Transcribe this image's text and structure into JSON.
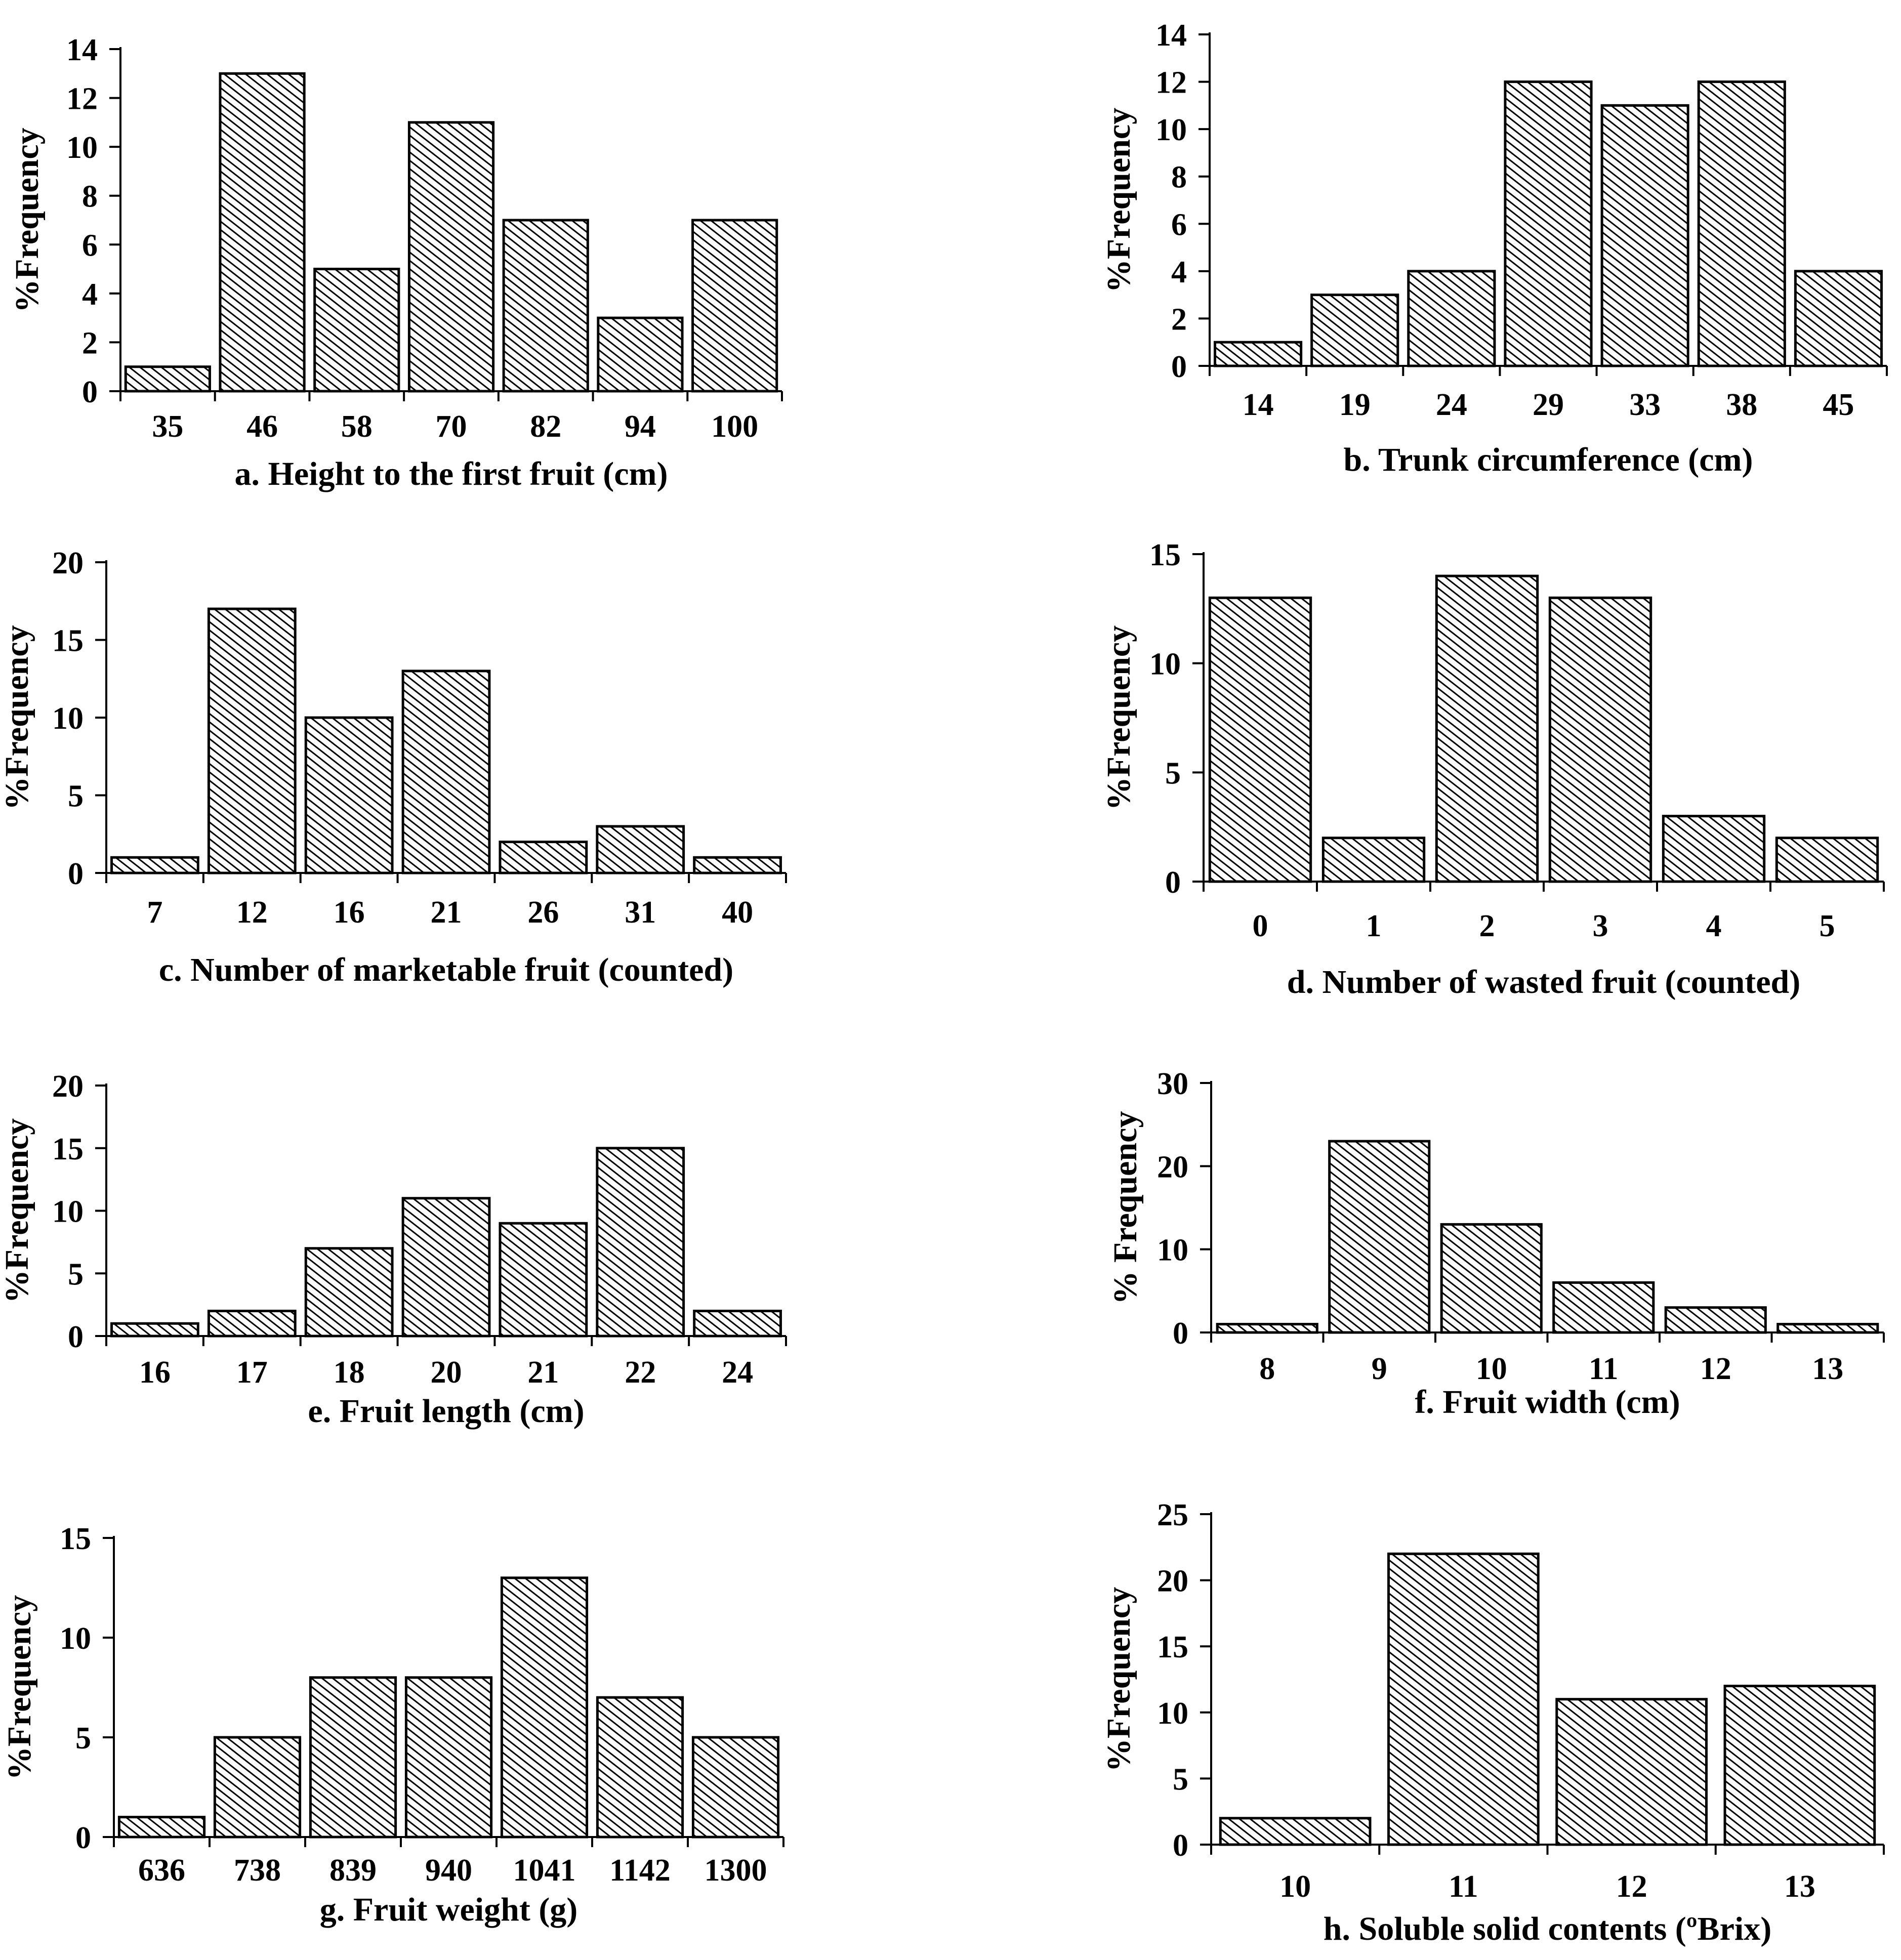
{
  "figure": {
    "bar_fill": "hatched",
    "colors": {
      "stroke": "#000000",
      "hatch": "#000000",
      "background": "#ffffff"
    }
  },
  "chart_data": [
    {
      "id": "a",
      "type": "bar",
      "categories": [
        "35",
        "46",
        "58",
        "70",
        "82",
        "94",
        "100"
      ],
      "values": [
        1,
        13,
        5,
        11,
        7,
        3,
        7
      ],
      "ylim": [
        0,
        14
      ],
      "yticks": [
        "0",
        "2",
        "4",
        "6",
        "8",
        "10",
        "12",
        "14"
      ],
      "ylabel": "%Frequency",
      "xlabel": "a. Height to the first fruit (cm)",
      "grid": false
    },
    {
      "id": "b",
      "type": "bar",
      "categories": [
        "14",
        "19",
        "24",
        "29",
        "33",
        "38",
        "45"
      ],
      "values": [
        1,
        3,
        4,
        12,
        11,
        12,
        4
      ],
      "ylim": [
        0,
        14
      ],
      "yticks": [
        "0",
        "2",
        "4",
        "6",
        "8",
        "10",
        "12",
        "14"
      ],
      "ylabel": "%Frequency",
      "xlabel": "b. Trunk circumference (cm)",
      "grid": false
    },
    {
      "id": "c",
      "type": "bar",
      "categories": [
        "7",
        "12",
        "16",
        "21",
        "26",
        "31",
        "40"
      ],
      "values": [
        1,
        17,
        10,
        13,
        2,
        3,
        1
      ],
      "ylim": [
        0,
        20
      ],
      "yticks": [
        "0",
        "5",
        "10",
        "15",
        "20"
      ],
      "ylabel": "%Frequency",
      "xlabel": "c. Number of marketable fruit (counted)",
      "grid": false
    },
    {
      "id": "d",
      "type": "bar",
      "categories": [
        "0",
        "1",
        "2",
        "3",
        "4",
        "5"
      ],
      "values": [
        13,
        2,
        14,
        13,
        3,
        2
      ],
      "ylim": [
        0,
        15
      ],
      "yticks": [
        "0",
        "5",
        "10",
        "15"
      ],
      "ylabel": "%Frequency",
      "xlabel": "d. Number of wasted fruit (counted)",
      "grid": false
    },
    {
      "id": "e",
      "type": "bar",
      "categories": [
        "16",
        "17",
        "18",
        "20",
        "21",
        "22",
        "24"
      ],
      "values": [
        1,
        2,
        7,
        11,
        9,
        15,
        2
      ],
      "ylim": [
        0,
        20
      ],
      "yticks": [
        "0",
        "5",
        "10",
        "15",
        "20"
      ],
      "ylabel": "%Frequency",
      "xlabel": "e. Fruit length (cm)",
      "grid": false
    },
    {
      "id": "f",
      "type": "bar",
      "categories": [
        "8",
        "9",
        "10",
        "11",
        "12",
        "13"
      ],
      "values": [
        1,
        23,
        13,
        6,
        3,
        1
      ],
      "ylim": [
        0,
        30
      ],
      "yticks": [
        "0",
        "10",
        "20",
        "30"
      ],
      "ylabel": "% Frequency",
      "xlabel": "f. Fruit width (cm)",
      "grid": false
    },
    {
      "id": "g",
      "type": "bar",
      "categories": [
        "636",
        "738",
        "839",
        "940",
        "1041",
        "1142",
        "1300"
      ],
      "values": [
        1,
        5,
        8,
        8,
        13,
        7,
        5
      ],
      "ylim": [
        0,
        15
      ],
      "yticks": [
        "0",
        "5",
        "10",
        "15"
      ],
      "ylabel": "%Frequency",
      "xlabel": "g. Fruit weight (g)",
      "grid": false
    },
    {
      "id": "h",
      "type": "bar",
      "categories": [
        "10",
        "11",
        "12",
        "13"
      ],
      "values": [
        2,
        22,
        11,
        12
      ],
      "ylim": [
        0,
        25
      ],
      "yticks": [
        "0",
        "5",
        "10",
        "15",
        "20",
        "25"
      ],
      "ylabel": "%Frequency",
      "xlabel": "h. Soluble solid contents (ºBrix)",
      "grid": false
    }
  ]
}
